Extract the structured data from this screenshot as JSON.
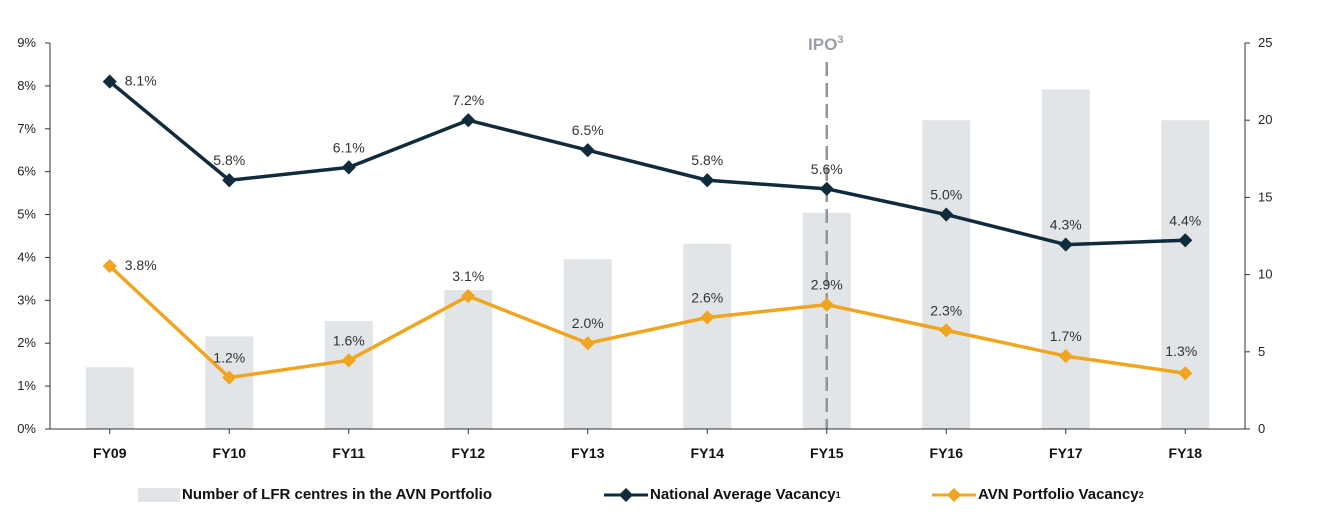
{
  "chart_data": {
    "type": "bar+line",
    "categories": [
      "FY09",
      "FY10",
      "FY11",
      "FY12",
      "FY13",
      "FY14",
      "FY15",
      "FY16",
      "FY17",
      "FY18"
    ],
    "bars": {
      "name": "Number of LFR centres in the AVN Portfolio",
      "values": [
        4,
        6,
        7,
        9,
        11,
        12,
        14,
        20,
        22,
        20
      ],
      "axis": "right",
      "color": "#e2e5e7"
    },
    "series": [
      {
        "name": "National Average Vacancy",
        "name_sup": "1",
        "values": [
          8.1,
          5.8,
          6.1,
          7.2,
          6.5,
          5.8,
          5.6,
          5.0,
          4.3,
          4.4
        ],
        "labels": [
          "8.1%",
          "5.8%",
          "6.1%",
          "7.2%",
          "6.5%",
          "5.8%",
          "5.6%",
          "5.0%",
          "4.3%",
          "4.4%"
        ],
        "axis": "left",
        "color": "#0f2b3c"
      },
      {
        "name": "AVN Portfolio Vacancy",
        "name_sup": "2",
        "values": [
          3.8,
          1.2,
          1.6,
          3.1,
          2.0,
          2.6,
          2.9,
          2.3,
          1.7,
          1.3
        ],
        "labels": [
          "3.8%",
          "1.2%",
          "1.6%",
          "3.1%",
          "2.0%",
          "2.6%",
          "2.9%",
          "2.3%",
          "1.7%",
          "1.3%"
        ],
        "axis": "left",
        "color": "#f0a521"
      }
    ],
    "y_left": {
      "min": 0,
      "max": 9,
      "ticks": [
        "0%",
        "1%",
        "2%",
        "3%",
        "4%",
        "5%",
        "6%",
        "7%",
        "8%",
        "9%"
      ]
    },
    "y_right": {
      "min": 0,
      "max": 25,
      "ticks": [
        "0",
        "5",
        "10",
        "15",
        "20",
        "25"
      ]
    },
    "annotation": {
      "text": "IPO",
      "sup": "3",
      "at_category": "FY15"
    },
    "grid": false,
    "legend_position": "bottom"
  }
}
